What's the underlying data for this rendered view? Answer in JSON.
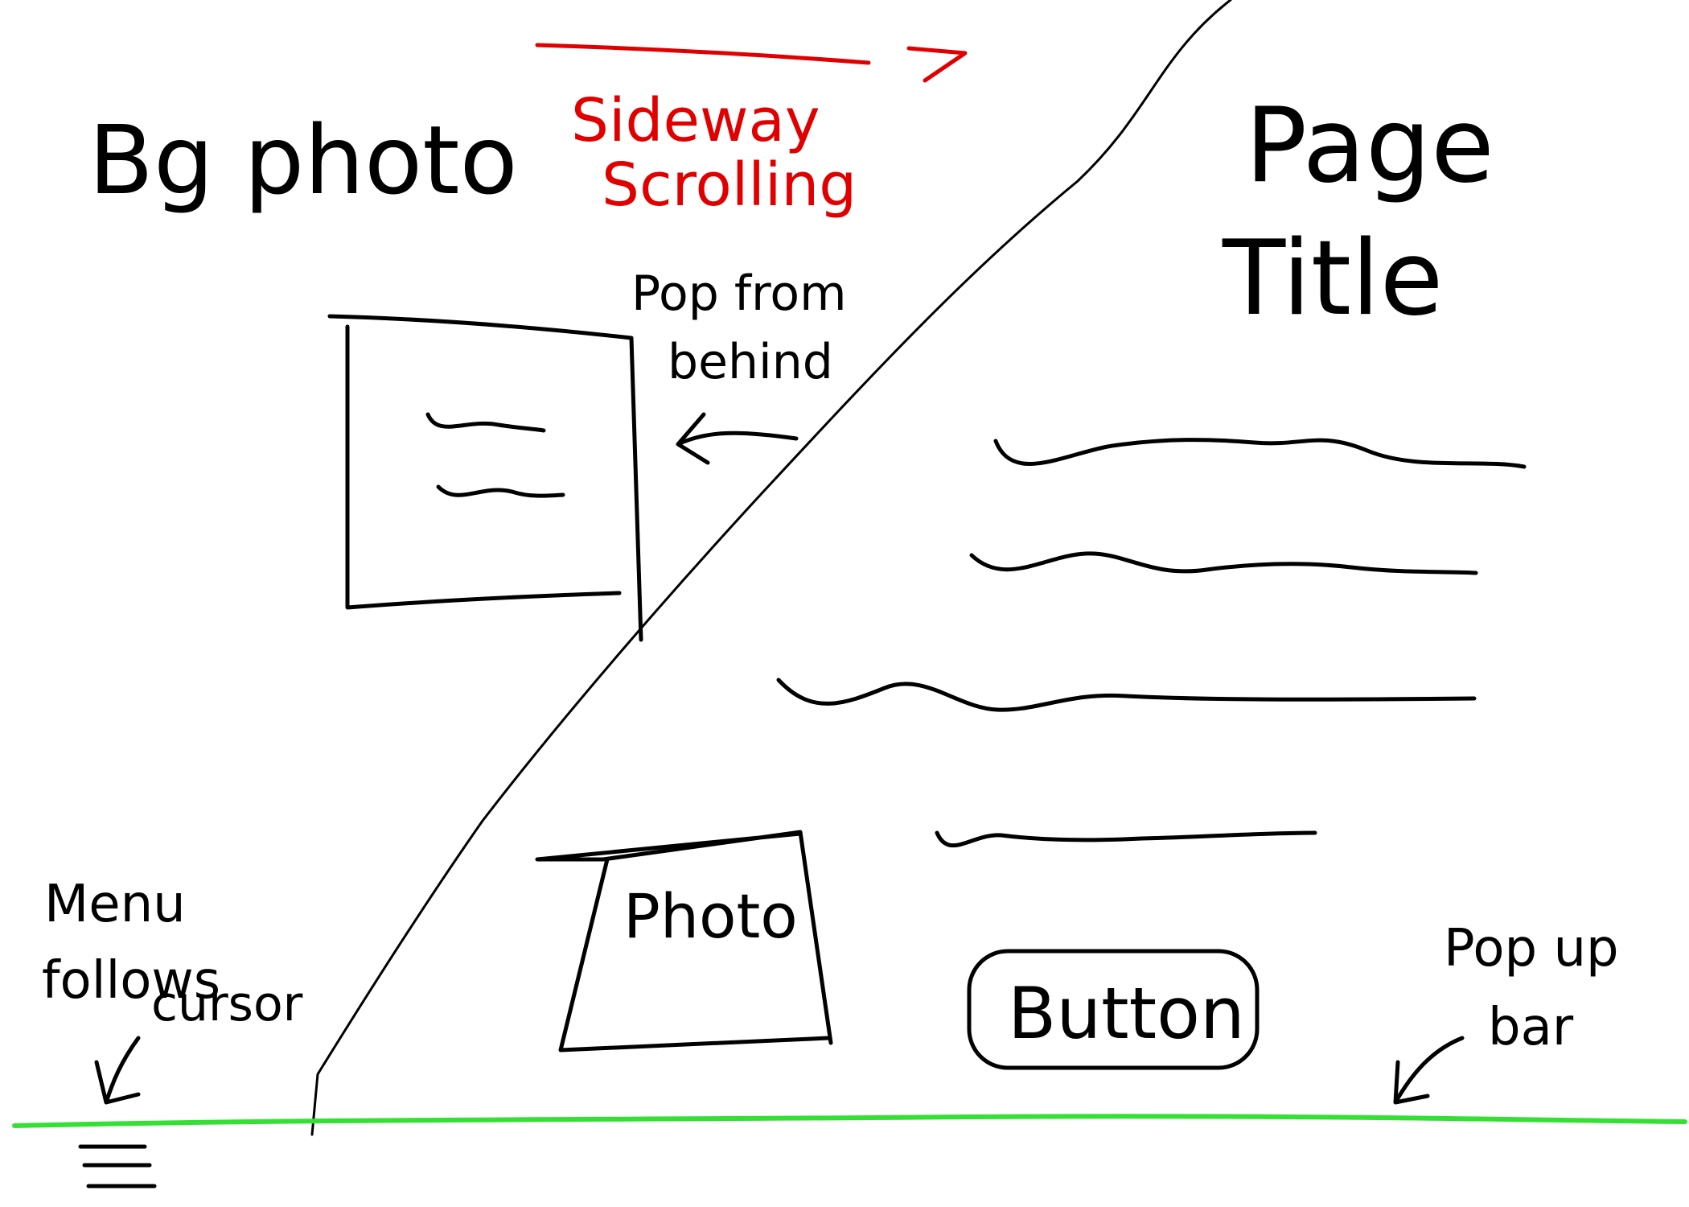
{
  "labels": {
    "bg_photo": "Bg photo",
    "sideway_line1": "Sideway",
    "sideway_line2": "Scrolling",
    "page_title_line1": "Page",
    "page_title_line2": "Title",
    "pop_line1": "Pop from",
    "pop_line2": "behind",
    "photo": "Photo",
    "button": "Button",
    "menu_line1": "Menu",
    "menu_line2": "follows",
    "menu_line3": "cursor",
    "popup_line1": "Pop up",
    "popup_line2": "bar"
  },
  "colors": {
    "ink": "#000000",
    "annotation": "#e00000",
    "bar": "#35e035"
  },
  "icons": {
    "menu": "hamburger-menu-icon"
  }
}
